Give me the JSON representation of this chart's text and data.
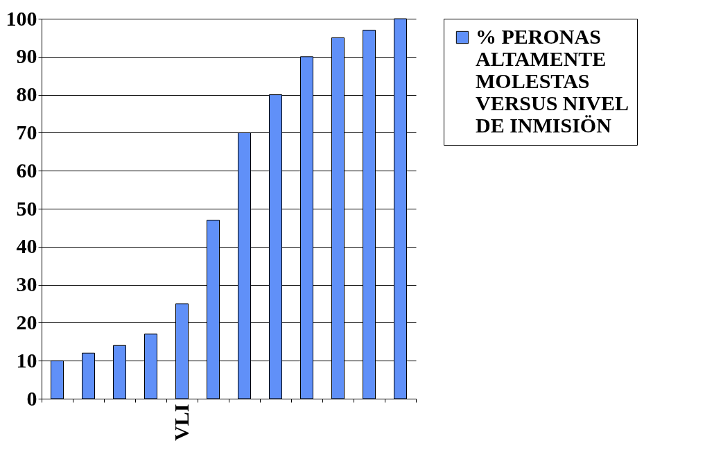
{
  "chart_data": {
    "type": "bar",
    "categories": [
      null,
      null,
      null,
      null,
      "VLI",
      null,
      null,
      null,
      null,
      null,
      null,
      null
    ],
    "series": [
      {
        "name": "% PERONAS ALTAMENTE MOLESTAS VERSUS NIVEL DE INMISIÖN",
        "color": "#6090f8",
        "values": [
          10,
          12,
          14,
          17,
          25,
          47,
          70,
          80,
          90,
          95,
          97,
          100
        ]
      }
    ],
    "ylim": [
      0,
      100
    ],
    "yticks": [
      0,
      10,
      20,
      30,
      40,
      50,
      60,
      70,
      80,
      90,
      100
    ],
    "grid": "y",
    "legend": "right"
  }
}
